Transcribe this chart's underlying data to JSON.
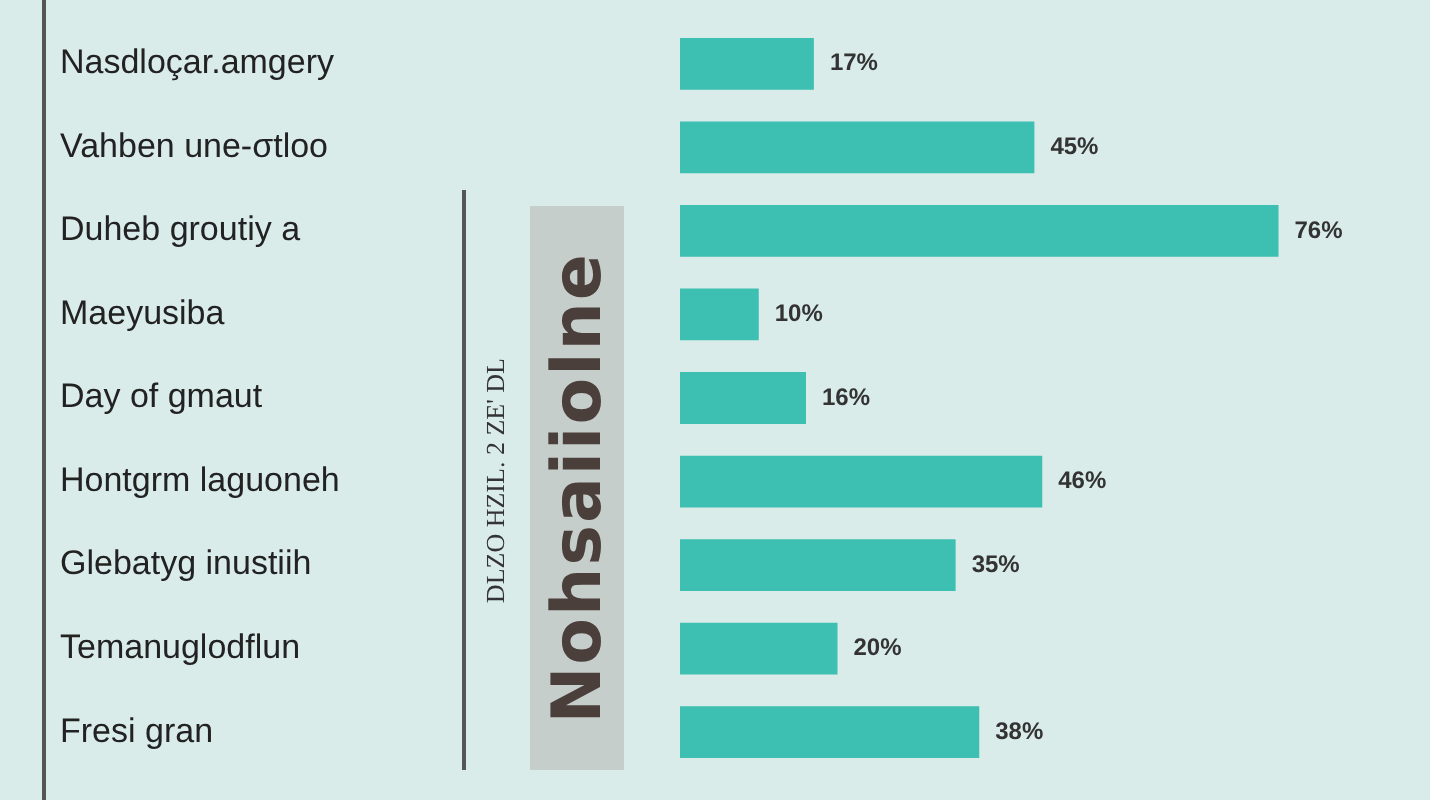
{
  "chart_data": {
    "type": "bar",
    "orientation": "horizontal",
    "ylabel": "Nohsaiiolne",
    "annotations": [
      "DLZO HZIL. 2 ZE' DL"
    ],
    "categories": [
      "Nasdloçar.amgery",
      "Vahben une-σtloo",
      "Duheb groutiy a",
      "Maeyusiba",
      "Day of gmaut",
      "Hontgrm laguoneh",
      "Glebatyg inustiih",
      "Temanuglodflun",
      "Fresi gran"
    ],
    "values": [
      17,
      45,
      76,
      10,
      16,
      46,
      35,
      20,
      38
    ],
    "value_labels": [
      "17%",
      "45%",
      "76%",
      "10%",
      "16%",
      "46%",
      "35%",
      "20%",
      "38%"
    ],
    "color": "#3dbfb1"
  }
}
